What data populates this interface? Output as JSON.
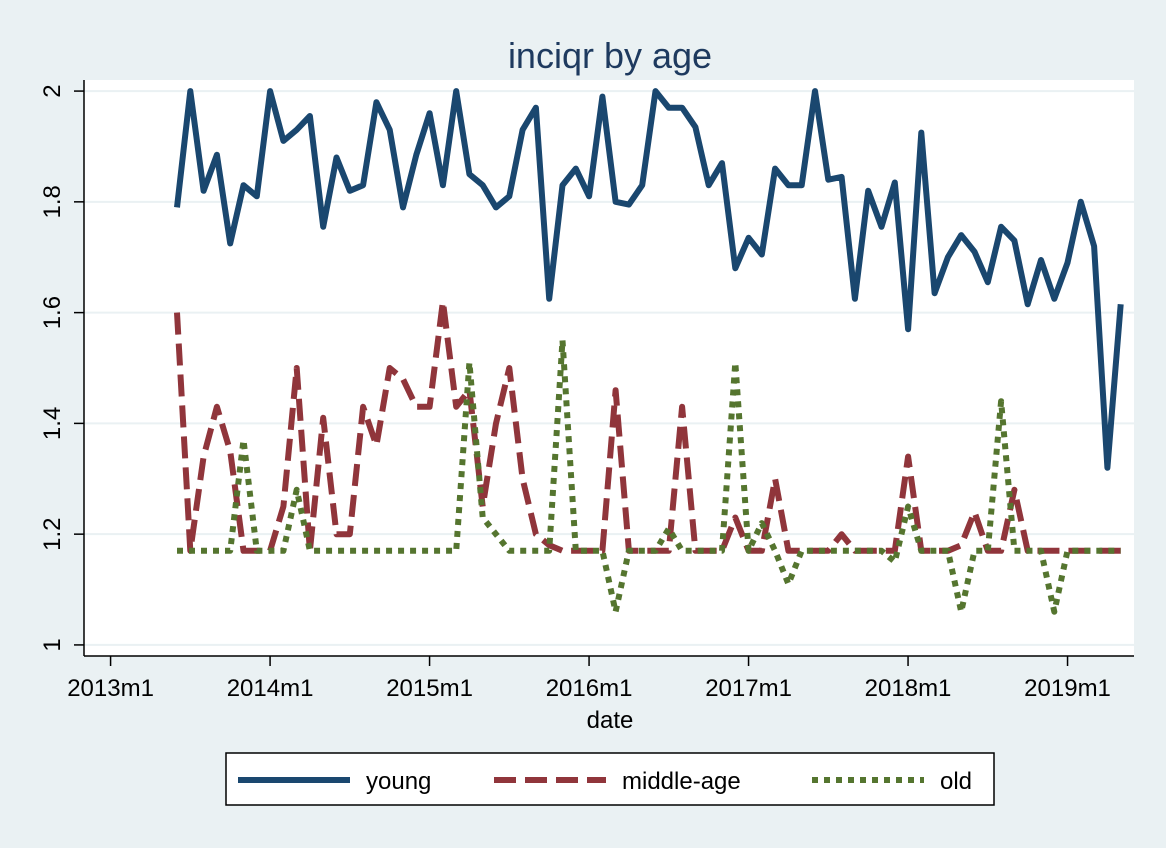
{
  "chart_data": {
    "type": "line",
    "title": "inciqr by age",
    "xlabel": "date",
    "ylabel": "",
    "x_tick_labels": [
      "2013m1",
      "2014m1",
      "2015m1",
      "2016m1",
      "2017m1",
      "2018m1",
      "2019m1"
    ],
    "y_tick_labels": [
      "1",
      "1.2",
      "1.4",
      "1.6",
      "1.8",
      "2"
    ],
    "ylim": [
      0.98,
      2.02
    ],
    "x_range": [
      "2012m11",
      "2019m6"
    ],
    "grid": true,
    "legend_position": "bottom",
    "x": [
      "2013m6",
      "2013m7",
      "2013m8",
      "2013m9",
      "2013m10",
      "2013m11",
      "2013m12",
      "2014m1",
      "2014m2",
      "2014m3",
      "2014m4",
      "2014m5",
      "2014m6",
      "2014m7",
      "2014m8",
      "2014m9",
      "2014m10",
      "2014m11",
      "2014m12",
      "2015m1",
      "2015m2",
      "2015m3",
      "2015m4",
      "2015m5",
      "2015m6",
      "2015m7",
      "2015m8",
      "2015m9",
      "2015m10",
      "2015m11",
      "2015m12",
      "2016m1",
      "2016m2",
      "2016m3",
      "2016m4",
      "2016m5",
      "2016m6",
      "2016m7",
      "2016m8",
      "2016m9",
      "2016m10",
      "2016m11",
      "2016m12",
      "2017m1",
      "2017m2",
      "2017m3",
      "2017m4",
      "2017m5",
      "2017m6",
      "2017m7",
      "2017m8",
      "2017m9",
      "2017m10",
      "2017m11",
      "2017m12",
      "2018m1",
      "2018m2",
      "2018m3",
      "2018m4",
      "2018m5",
      "2018m6",
      "2018m7",
      "2018m8",
      "2018m9",
      "2018m10",
      "2018m11",
      "2018m12",
      "2019m1",
      "2019m2",
      "2019m3",
      "2019m4",
      "2019m5"
    ],
    "series": [
      {
        "name": "young",
        "color": "#1a476f",
        "dash": "solid",
        "values": [
          1.79,
          2.0,
          1.82,
          1.885,
          1.725,
          1.83,
          1.81,
          2.0,
          1.91,
          1.93,
          1.955,
          1.755,
          1.88,
          1.82,
          1.83,
          1.98,
          1.93,
          1.79,
          1.885,
          1.96,
          1.83,
          2.0,
          1.85,
          1.83,
          1.79,
          1.81,
          1.93,
          1.97,
          1.625,
          1.83,
          1.86,
          1.81,
          1.99,
          1.8,
          1.795,
          1.83,
          2.0,
          1.97,
          1.97,
          1.935,
          1.83,
          1.87,
          1.68,
          1.735,
          1.705,
          1.86,
          1.83,
          1.83,
          2.0,
          1.84,
          1.845,
          1.625,
          1.82,
          1.755,
          1.835,
          1.57,
          1.925,
          1.635,
          1.7,
          1.74,
          1.71,
          1.655,
          1.755,
          1.73,
          1.615,
          1.695,
          1.625,
          1.69,
          1.8,
          1.72,
          1.32,
          1.615
        ]
      },
      {
        "name": "middle-age",
        "color": "#90353b",
        "dash": "dash",
        "values": [
          1.6,
          1.17,
          1.34,
          1.43,
          1.35,
          1.17,
          1.17,
          1.17,
          1.25,
          1.5,
          1.17,
          1.41,
          1.2,
          1.2,
          1.43,
          1.36,
          1.5,
          1.48,
          1.43,
          1.43,
          1.62,
          1.43,
          1.46,
          1.25,
          1.4,
          1.5,
          1.3,
          1.2,
          1.18,
          1.17,
          1.17,
          1.17,
          1.17,
          1.46,
          1.17,
          1.17,
          1.17,
          1.17,
          1.43,
          1.17,
          1.17,
          1.17,
          1.23,
          1.17,
          1.17,
          1.3,
          1.17,
          1.17,
          1.17,
          1.17,
          1.2,
          1.17,
          1.17,
          1.17,
          1.17,
          1.34,
          1.17,
          1.17,
          1.17,
          1.18,
          1.24,
          1.17,
          1.17,
          1.28,
          1.17,
          1.17,
          1.17,
          1.17,
          1.17,
          1.17,
          1.17,
          1.17
        ]
      },
      {
        "name": "old",
        "color": "#55752f",
        "dash": "dot",
        "values": [
          1.17,
          1.17,
          1.17,
          1.17,
          1.17,
          1.37,
          1.17,
          1.17,
          1.17,
          1.28,
          1.17,
          1.17,
          1.17,
          1.17,
          1.17,
          1.17,
          1.17,
          1.17,
          1.17,
          1.17,
          1.17,
          1.17,
          1.51,
          1.23,
          1.2,
          1.17,
          1.17,
          1.17,
          1.17,
          1.55,
          1.17,
          1.17,
          1.17,
          1.06,
          1.17,
          1.17,
          1.17,
          1.21,
          1.17,
          1.17,
          1.17,
          1.17,
          1.51,
          1.17,
          1.22,
          1.17,
          1.11,
          1.17,
          1.17,
          1.17,
          1.17,
          1.17,
          1.17,
          1.17,
          1.15,
          1.25,
          1.17,
          1.17,
          1.17,
          1.06,
          1.17,
          1.17,
          1.44,
          1.17,
          1.17,
          1.17,
          1.06,
          1.17,
          1.17,
          1.17,
          1.17,
          1.17
        ]
      }
    ]
  }
}
